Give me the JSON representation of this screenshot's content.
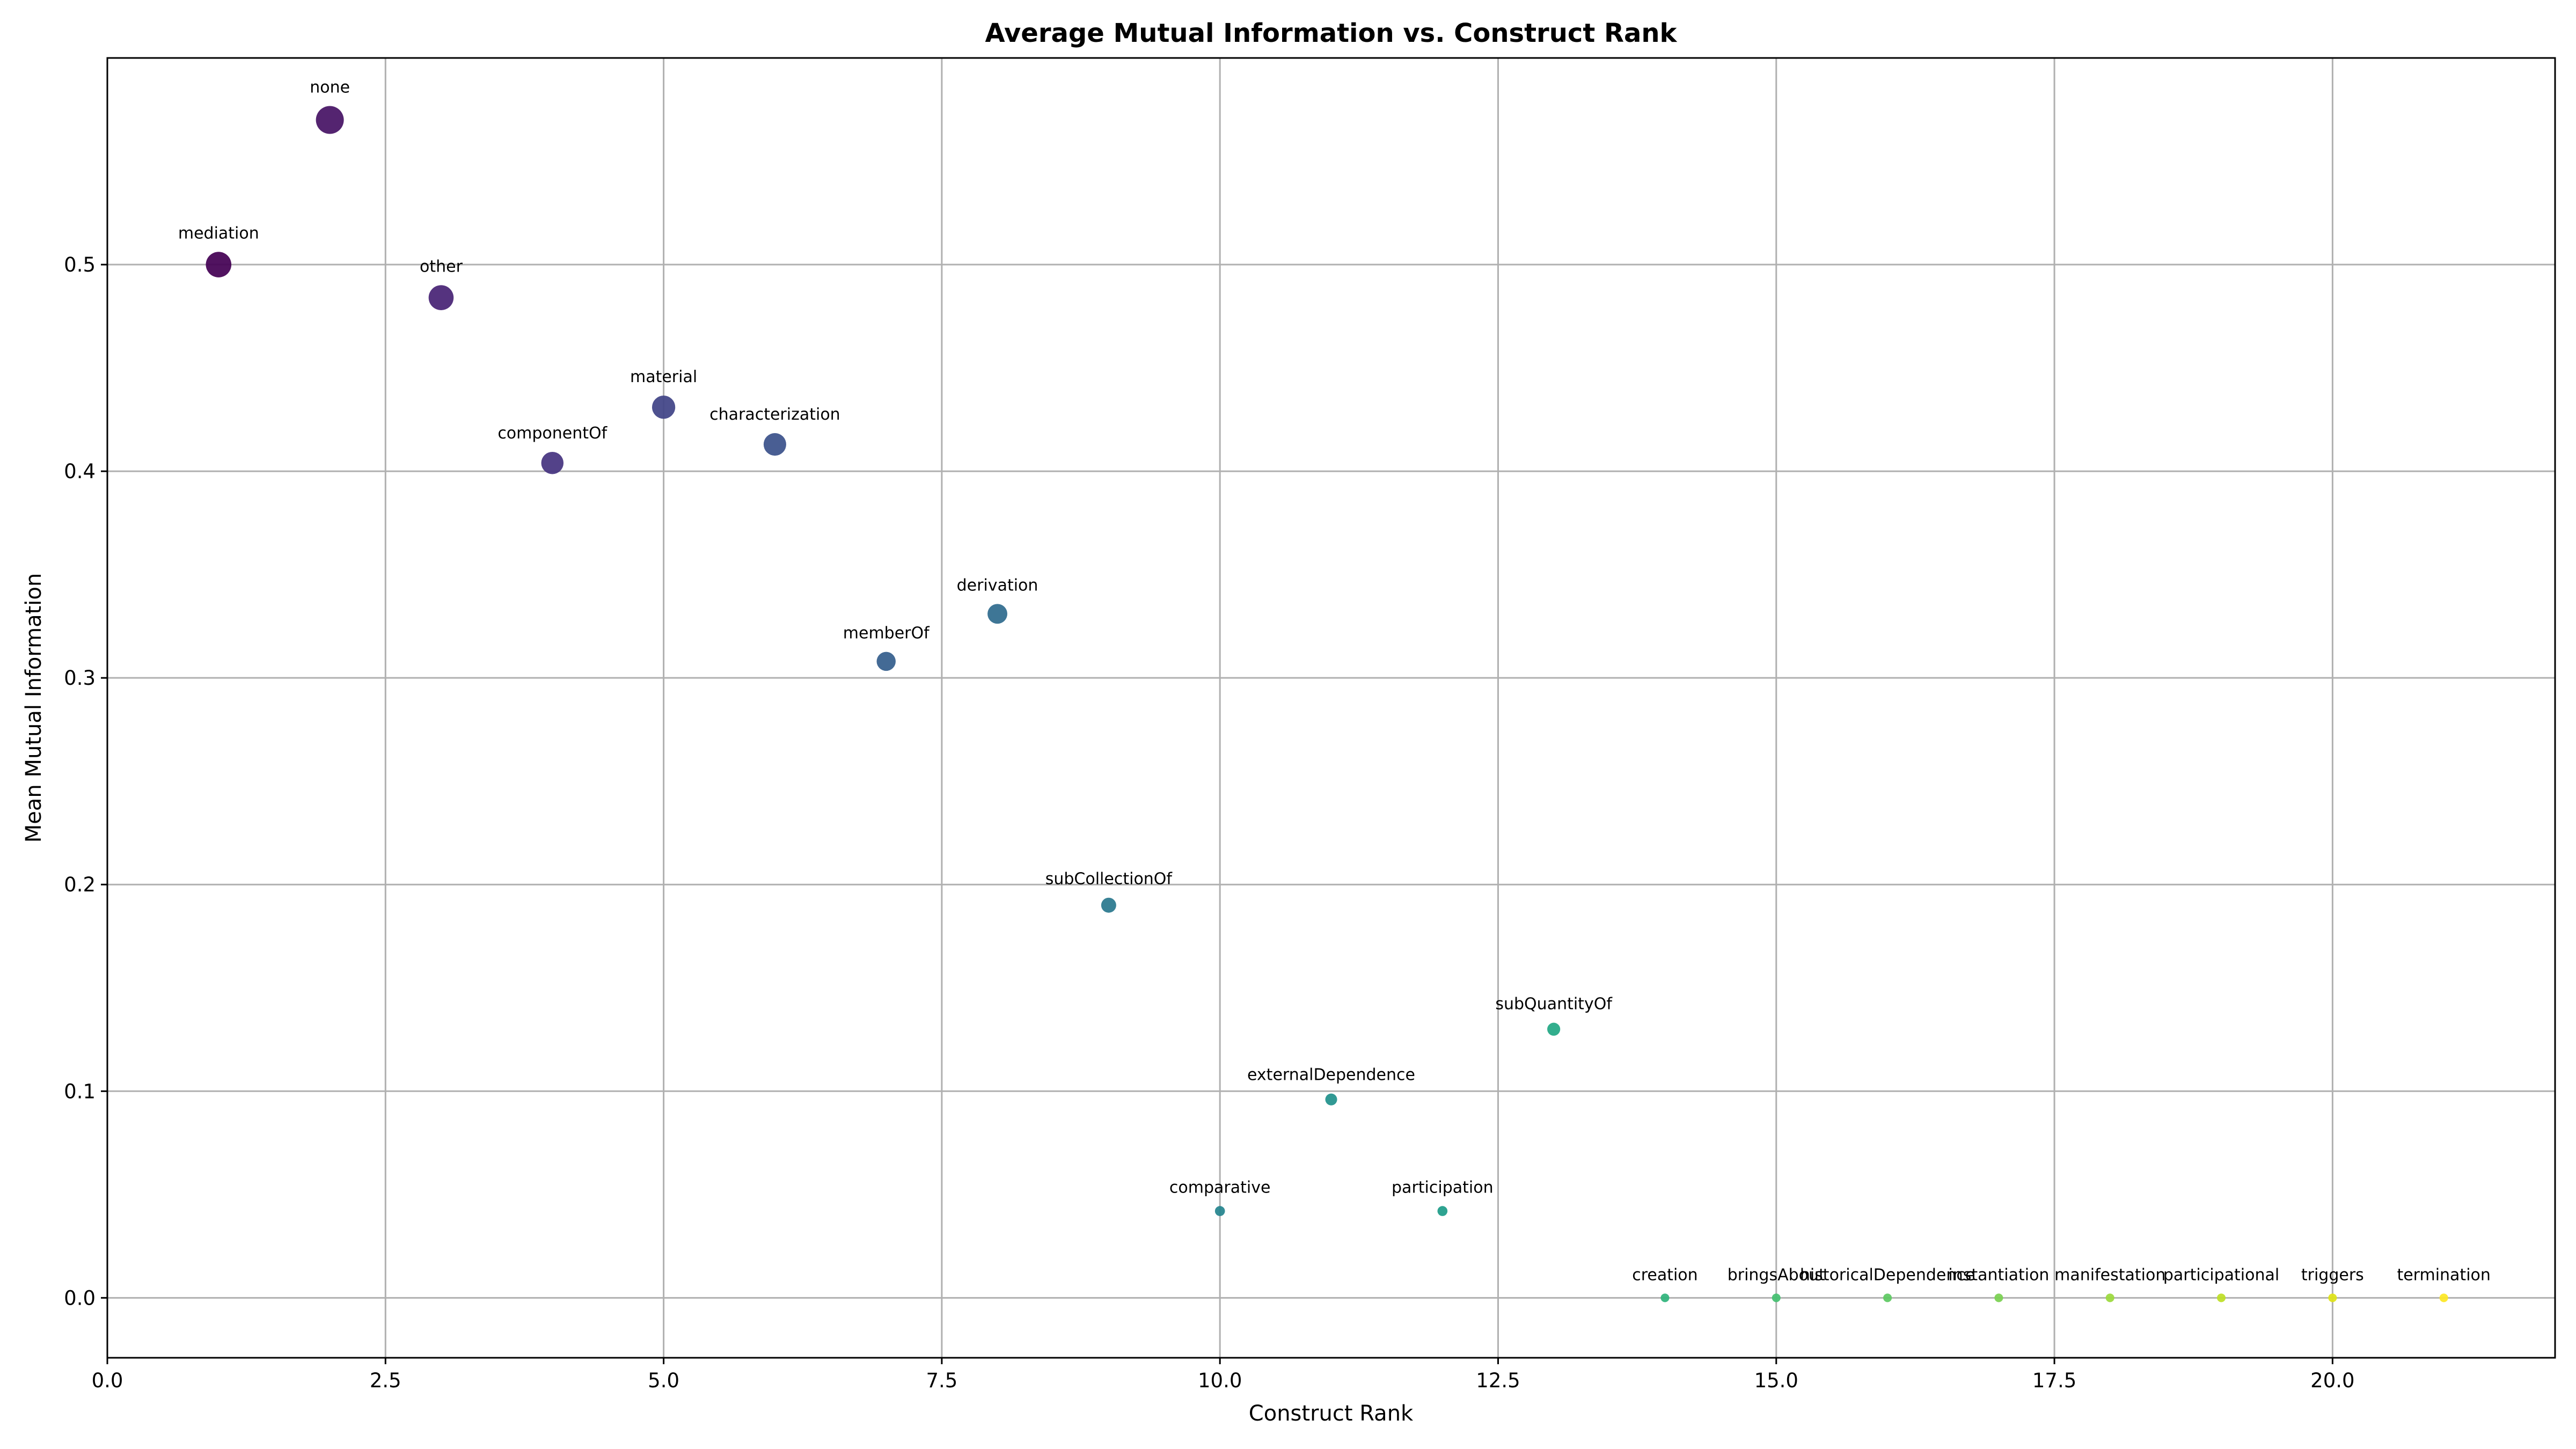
{
  "chart_data": {
    "type": "scatter",
    "title": "Average Mutual Information vs. Construct Rank",
    "xlabel": "Construct Rank",
    "ylabel": "Mean Mutual Information",
    "xlim": [
      0,
      22
    ],
    "ylim": [
      -0.029,
      0.6
    ],
    "x_ticks": [
      0.0,
      2.5,
      5.0,
      7.5,
      10.0,
      12.5,
      15.0,
      17.5,
      20.0
    ],
    "x_tick_labels": [
      "0.0",
      "2.5",
      "5.0",
      "7.5",
      "10.0",
      "12.5",
      "15.0",
      "17.5",
      "20.0"
    ],
    "y_ticks": [
      0.0,
      0.1,
      0.2,
      0.3,
      0.4,
      0.5
    ],
    "y_tick_labels": [
      "0.0",
      "0.1",
      "0.2",
      "0.3",
      "0.4",
      "0.5"
    ],
    "grid": true,
    "colormap": "viridis",
    "points": [
      {
        "label": "mediation",
        "x": 1,
        "y": 0.5,
        "color": "#440154"
      },
      {
        "label": "none",
        "x": 2,
        "y": 0.57,
        "color": "#471365"
      },
      {
        "label": "other",
        "x": 3,
        "y": 0.484,
        "color": "#482475"
      },
      {
        "label": "componentOf",
        "x": 4,
        "y": 0.404,
        "color": "#463480"
      },
      {
        "label": "material",
        "x": 5,
        "y": 0.431,
        "color": "#414487"
      },
      {
        "label": "characterization",
        "x": 6,
        "y": 0.413,
        "color": "#3b528b"
      },
      {
        "label": "memberOf",
        "x": 7,
        "y": 0.308,
        "color": "#355f8d"
      },
      {
        "label": "derivation",
        "x": 8,
        "y": 0.331,
        "color": "#2f6c8e"
      },
      {
        "label": "subCollectionOf",
        "x": 9,
        "y": 0.19,
        "color": "#2a788e"
      },
      {
        "label": "comparative",
        "x": 10,
        "y": 0.042,
        "color": "#25848e"
      },
      {
        "label": "externalDependence",
        "x": 11,
        "y": 0.096,
        "color": "#21918c"
      },
      {
        "label": "participation",
        "x": 12,
        "y": 0.042,
        "color": "#1e9c89"
      },
      {
        "label": "subQuantityOf",
        "x": 13,
        "y": 0.13,
        "color": "#22a884"
      },
      {
        "label": "creation",
        "x": 14,
        "y": 0.0,
        "color": "#2fb47c"
      },
      {
        "label": "bringsAbout",
        "x": 15,
        "y": 0.0,
        "color": "#44bf70"
      },
      {
        "label": "historicalDependence",
        "x": 16,
        "y": 0.0,
        "color": "#5ec962"
      },
      {
        "label": "instantiation",
        "x": 17,
        "y": 0.0,
        "color": "#7ad151"
      },
      {
        "label": "manifestation",
        "x": 18,
        "y": 0.0,
        "color": "#9bd93c"
      },
      {
        "label": "participational",
        "x": 19,
        "y": 0.0,
        "color": "#bddf26"
      },
      {
        "label": "triggers",
        "x": 20,
        "y": 0.0,
        "color": "#dfe318"
      },
      {
        "label": "termination",
        "x": 21,
        "y": 0.0,
        "color": "#fde725"
      }
    ]
  }
}
